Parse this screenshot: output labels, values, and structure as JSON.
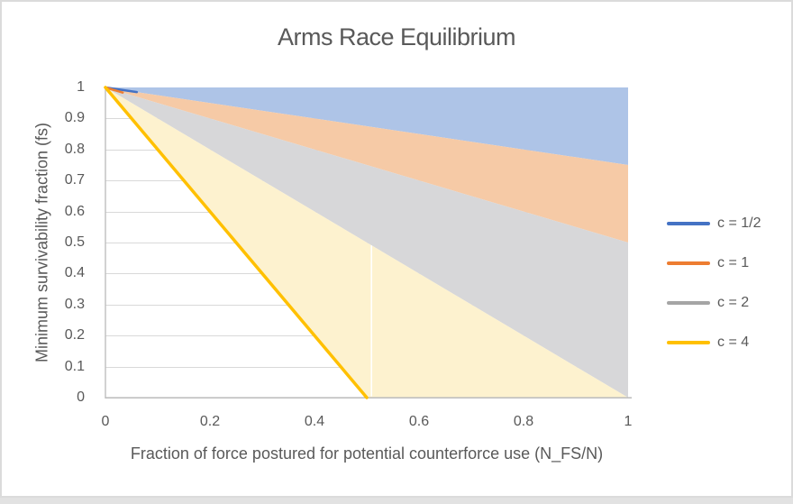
{
  "chart": {
    "title": "Arms Race Equilibrium",
    "x_axis": {
      "label": "Fraction of force postured for potential counterforce use (N_FS/N)",
      "ticks": [
        "0",
        "0.2",
        "0.4",
        "0.6",
        "0.8",
        "1"
      ],
      "tick_values": [
        0,
        0.2,
        0.4,
        0.6,
        0.8,
        1
      ]
    },
    "y_axis": {
      "label": "Minimum survivability fraction (fs)",
      "ticks": [
        "0",
        "0.1",
        "0.2",
        "0.3",
        "0.4",
        "0.5",
        "0.6",
        "0.7",
        "0.8",
        "0.9",
        "1"
      ],
      "tick_values": [
        0,
        0.1,
        0.2,
        0.3,
        0.4,
        0.5,
        0.6,
        0.7,
        0.8,
        0.9,
        1
      ]
    },
    "legend": [
      {
        "label": "c = 1/2",
        "color": "#4472C4"
      },
      {
        "label": "c = 1",
        "color": "#ED7D31"
      },
      {
        "label": "c = 2",
        "color": "#A5A5A5"
      },
      {
        "label": "c = 4",
        "color": "#FFC000"
      }
    ],
    "colors": {
      "title": "#595959",
      "tick": "#595959",
      "grid": "#D9D9D9",
      "axis": "#BFBFBF",
      "background": "#FFFFFF",
      "frame_border": "#DBDBDB",
      "bottom_strip": "#E2E2E2"
    },
    "chart_data": {
      "type": "area",
      "title": "Arms Race Equilibrium",
      "xlabel": "Fraction of force postured for potential counterforce use (N_FS/N)",
      "ylabel": "Minimum survivability fraction (fs)",
      "xlim": [
        0,
        1
      ],
      "ylim": [
        0,
        1
      ],
      "grid": "horizontal",
      "legend_position": "right",
      "x": [
        0,
        0.25,
        0.5,
        0.75,
        1
      ],
      "series": [
        {
          "name": "c = 1/2",
          "color": "#4472C4",
          "values": [
            1,
            0.9375,
            0.875,
            0.8125,
            0.75
          ]
        },
        {
          "name": "c = 1",
          "color": "#ED7D31",
          "values": [
            1,
            0.875,
            0.75,
            0.625,
            0.5
          ]
        },
        {
          "name": "c = 2",
          "color": "#A5A5A5",
          "values": [
            1,
            0.75,
            0.5,
            0.25,
            0
          ]
        },
        {
          "name": "c = 4",
          "color": "#FFC000",
          "values": [
            1,
            0.5,
            0,
            0,
            0
          ]
        }
      ],
      "bands": [
        {
          "name": "band-above-c-half",
          "fill": "#AEC4E7",
          "polygon": [
            [
              0,
              1
            ],
            [
              1,
              1
            ],
            [
              1,
              0.75
            ]
          ]
        },
        {
          "name": "band-c-half-to-c-1",
          "fill": "#F6CAA6",
          "polygon": [
            [
              0,
              1
            ],
            [
              1,
              0.75
            ],
            [
              1,
              0.5
            ]
          ]
        },
        {
          "name": "band-c-1-to-c-2",
          "fill": "#D7D7D9",
          "polygon": [
            [
              0,
              1
            ],
            [
              1,
              0.5
            ],
            [
              1,
              0
            ]
          ]
        },
        {
          "name": "band-c-2-to-c-4",
          "fill": "#FDF2CF",
          "polygon": [
            [
              0,
              1
            ],
            [
              1,
              0
            ],
            [
              0.5,
              0
            ]
          ]
        }
      ],
      "drawn_lines": [
        {
          "name": "c-half-line-stub",
          "color": "#4472C4",
          "width": 2.5,
          "points": [
            [
              0,
              1
            ],
            [
              0.06,
              0.985
            ]
          ]
        },
        {
          "name": "c-1-line-stub",
          "color": "#ED7D31",
          "width": 2.5,
          "points": [
            [
              0,
              1
            ],
            [
              0.033,
              0.9835
            ]
          ]
        },
        {
          "name": "c-4-line",
          "color": "#FFC000",
          "width": 3.5,
          "points": [
            [
              0,
              1
            ],
            [
              0.5,
              0
            ]
          ]
        }
      ],
      "seam": {
        "x": 0.509,
        "y_top": 0.491,
        "y_bottom": 0.004,
        "color": "#FFFFFF"
      }
    }
  }
}
